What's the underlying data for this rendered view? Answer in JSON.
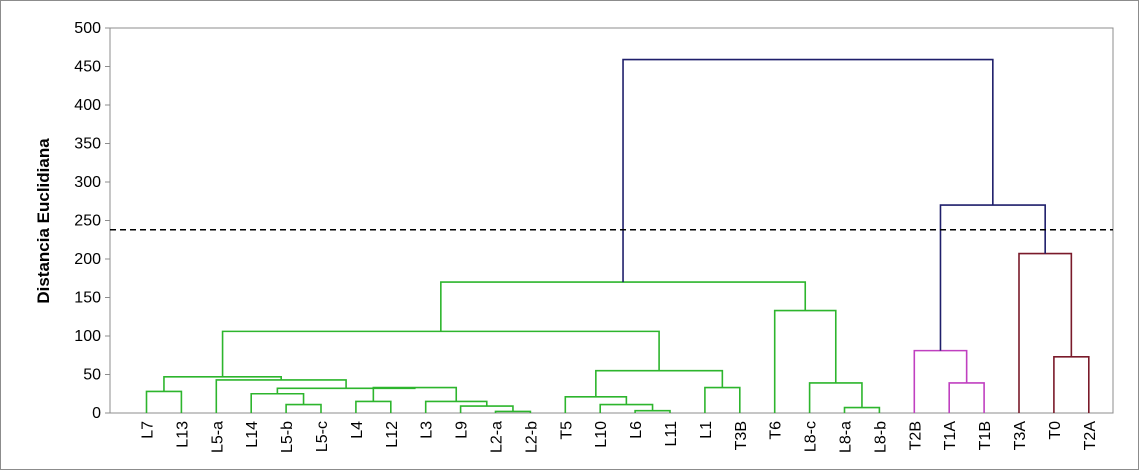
{
  "chart_data": {
    "type": "dendrogram",
    "title": "",
    "xlabel": "",
    "ylabel": "Distancia Euclidiana",
    "ylim": [
      0,
      500
    ],
    "yticks": [
      0,
      50,
      100,
      150,
      200,
      250,
      300,
      350,
      400,
      450,
      500
    ],
    "grid": false,
    "cut_line": {
      "y": 238,
      "style": "dashed",
      "color": "#000000"
    },
    "leaves": [
      "L7",
      "L13",
      "L5-a",
      "L14",
      "L5-b",
      "L5-c",
      "L4",
      "L12",
      "L3",
      "L9",
      "L2-a",
      "L2-b",
      "T5",
      "L10",
      "L6",
      "L11",
      "L1",
      "T3B",
      "T6",
      "L8-c",
      "L8-a",
      "L8-b",
      "T2B",
      "T1A",
      "T1B",
      "T3A",
      "T0",
      "T2A"
    ],
    "cluster_colors": {
      "green": "#2db52d",
      "magenta": "#c040c0",
      "maroon": "#7a1a2a",
      "navy": "#1f1f6b"
    },
    "merges": [
      {
        "left": "L7",
        "right": "L13",
        "height": 28,
        "color": "green"
      },
      {
        "left": "L5-b",
        "right": "L5-c",
        "height": 11,
        "color": "green"
      },
      {
        "left": "L14",
        "right": "n2",
        "height": 25,
        "color": "green"
      },
      {
        "left": "L4",
        "right": "L12",
        "height": 15,
        "color": "green"
      },
      {
        "left": "L2-a",
        "right": "L2-b",
        "height": 2,
        "color": "green"
      },
      {
        "left": "L9",
        "right": "n5",
        "height": 9,
        "color": "green"
      },
      {
        "left": "L3",
        "right": "n6",
        "height": 15,
        "color": "green"
      },
      {
        "left": "n4",
        "right": "n7",
        "height": 33,
        "color": "green"
      },
      {
        "left": "n3",
        "right": "n8",
        "height": 32,
        "color": "green"
      },
      {
        "left": "L5-a",
        "right": "n9",
        "height": 43,
        "color": "green"
      },
      {
        "left": "n1",
        "right": "n10",
        "height": 47,
        "color": "green"
      },
      {
        "left": "L6",
        "right": "L11",
        "height": 3,
        "color": "green"
      },
      {
        "left": "L10",
        "right": "n12",
        "height": 11,
        "color": "green"
      },
      {
        "left": "T5",
        "right": "n13",
        "height": 21,
        "color": "green"
      },
      {
        "left": "L1",
        "right": "T3B",
        "height": 33,
        "color": "green"
      },
      {
        "left": "n14",
        "right": "n15",
        "height": 55,
        "color": "green"
      },
      {
        "left": "n11",
        "right": "n16",
        "height": 106,
        "color": "green"
      },
      {
        "left": "L8-a",
        "right": "L8-b",
        "height": 7,
        "color": "green"
      },
      {
        "left": "L8-c",
        "right": "n18",
        "height": 39,
        "color": "green"
      },
      {
        "left": "T6",
        "right": "n19",
        "height": 133,
        "color": "green"
      },
      {
        "left": "n17",
        "right": "n20",
        "height": 170,
        "color": "green"
      },
      {
        "left": "T1A",
        "right": "T1B",
        "height": 39,
        "color": "magenta"
      },
      {
        "left": "T2B",
        "right": "n22",
        "height": 81,
        "color": "magenta"
      },
      {
        "left": "T0",
        "right": "T2A",
        "height": 73,
        "color": "maroon"
      },
      {
        "left": "T3A",
        "right": "n24",
        "height": 207,
        "color": "maroon"
      },
      {
        "left": "n23",
        "right": "n25",
        "height": 270,
        "color": "navy"
      },
      {
        "left": "n21",
        "right": "n26",
        "height": 459,
        "color": "navy"
      }
    ]
  }
}
